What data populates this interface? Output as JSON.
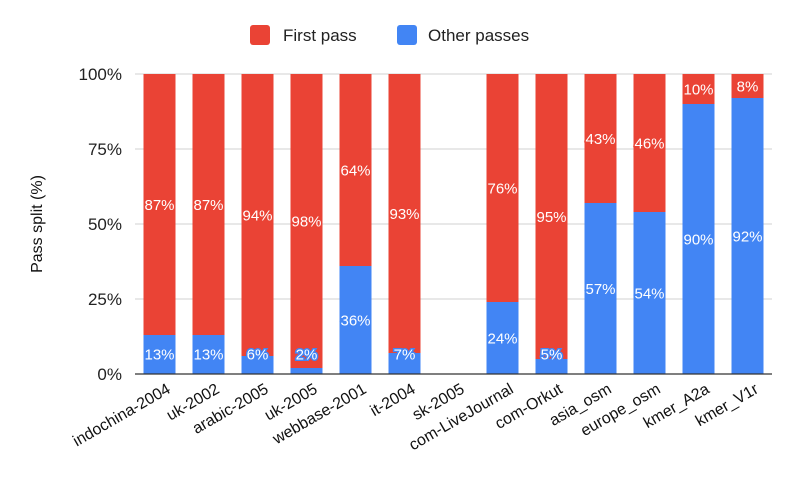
{
  "chart_data": {
    "type": "bar",
    "stacked": true,
    "normalized_percent": true,
    "title": "",
    "xlabel": "",
    "ylabel": "Pass split (%)",
    "ylim": [
      0,
      100
    ],
    "yticks": [
      "0%",
      "25%",
      "50%",
      "75%",
      "100%"
    ],
    "legend_position": "top",
    "categories": [
      "indochina-2004",
      "uk-2002",
      "arabic-2005",
      "uk-2005",
      "webbase-2001",
      "it-2004",
      "sk-2005",
      "com-LiveJournal",
      "com-Orkut",
      "asia_osm",
      "europe_osm",
      "kmer_A2a",
      "kmer_V1r"
    ],
    "series": [
      {
        "name": "Other passes",
        "color": "#4285f4",
        "values": [
          13,
          13,
          6,
          2,
          36,
          7,
          null,
          24,
          5,
          57,
          54,
          90,
          92
        ],
        "labels": [
          "13%",
          "13%",
          "6%",
          "2%",
          "36%",
          "7%",
          "",
          "24%",
          "5%",
          "57%",
          "54%",
          "90%",
          "92%"
        ]
      },
      {
        "name": "First pass",
        "color": "#ea4335",
        "values": [
          87,
          87,
          94,
          98,
          64,
          93,
          null,
          76,
          95,
          43,
          46,
          10,
          8
        ],
        "labels": [
          "87%",
          "87%",
          "94%",
          "98%",
          "64%",
          "93%",
          "",
          "76%",
          "95%",
          "43%",
          "46%",
          "10%",
          "8%"
        ]
      }
    ],
    "legend": [
      "First pass",
      "Other passes"
    ]
  }
}
